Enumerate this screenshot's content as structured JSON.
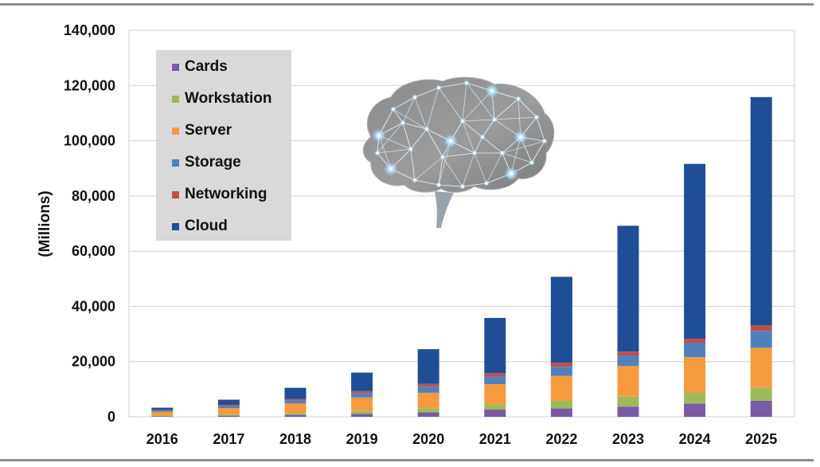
{
  "chart_data": {
    "type": "bar",
    "stacked": true,
    "categories": [
      "2016",
      "2017",
      "2018",
      "2019",
      "2020",
      "2021",
      "2022",
      "2023",
      "2024",
      "2025"
    ],
    "series": [
      {
        "name": "Cards",
        "color": "#7a5aa6",
        "values": [
          200,
          400,
          700,
          1100,
          1600,
          2600,
          3100,
          3700,
          4800,
          5800
        ]
      },
      {
        "name": "Workstation",
        "color": "#9bbb59",
        "values": [
          200,
          400,
          700,
          1000,
          1500,
          1900,
          2700,
          3600,
          4000,
          4700
        ]
      },
      {
        "name": "Server",
        "color": "#f79a3e",
        "values": [
          1400,
          2300,
          3400,
          4900,
          5600,
          7300,
          9000,
          11100,
          12800,
          14500
        ]
      },
      {
        "name": "Storage",
        "color": "#4f81bd",
        "values": [
          500,
          800,
          1100,
          1600,
          2200,
          2800,
          3300,
          3700,
          5100,
          6100
        ]
      },
      {
        "name": "Networking",
        "color": "#c0504d",
        "values": [
          200,
          400,
          500,
          700,
          1000,
          1200,
          1500,
          1500,
          1600,
          2000
        ]
      },
      {
        "name": "Cloud",
        "color": "#1f4e96",
        "values": [
          800,
          1900,
          4100,
          6700,
          12600,
          20000,
          31100,
          45600,
          63300,
          82700
        ]
      }
    ],
    "ylabel": "(Millions)",
    "ylim": [
      0,
      140000
    ],
    "yticks": [
      "0",
      "20,000",
      "40,000",
      "60,000",
      "80,000",
      "100,000",
      "120,000",
      "140,000"
    ],
    "grid": true,
    "legend_position": "top-left"
  }
}
